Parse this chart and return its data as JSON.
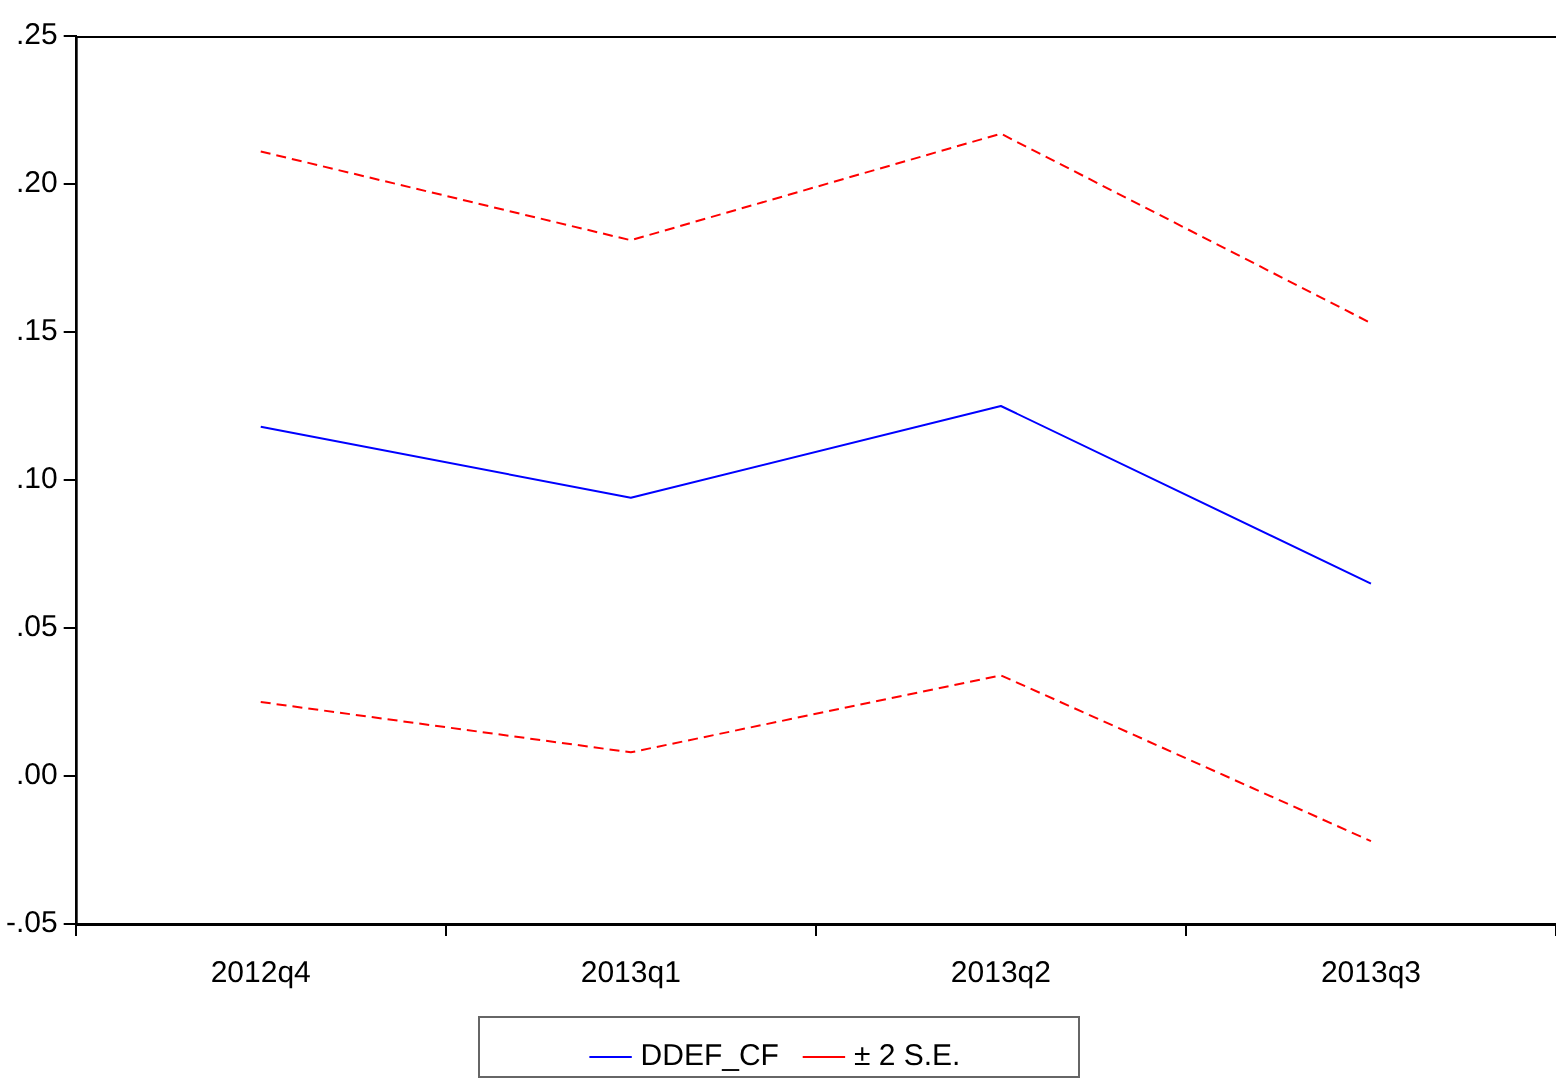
{
  "chart_data": {
    "type": "line",
    "categories": [
      "2012q4",
      "2013q1",
      "2013q2",
      "2013q3"
    ],
    "series": [
      {
        "name": "DDEF_CF",
        "color": "#0000ff",
        "values": [
          0.118,
          0.094,
          0.125,
          0.065
        ],
        "line_style": "solid"
      },
      {
        "name": "± 2 S.E.",
        "color": "#ff0000",
        "values": [
          0.211,
          0.181,
          0.217,
          0.153
        ],
        "line_style": "dashed"
      },
      {
        "color": "#ff0000",
        "values": [
          0.025,
          0.008,
          0.034,
          -0.022
        ],
        "line_style": "dashed"
      }
    ],
    "ylim": [
      -0.05,
      0.25
    ],
    "yticks": [
      {
        "value": -0.05,
        "label": "-.05"
      },
      {
        "value": 0,
        "label": ".00"
      },
      {
        "value": 0.05,
        "label": ".05"
      },
      {
        "value": 0.1,
        "label": ".10"
      },
      {
        "value": 0.15,
        "label": ".15"
      },
      {
        "value": 0.2,
        "label": ".20"
      },
      {
        "value": 0.25,
        "label": ".25"
      }
    ],
    "grid": false,
    "legend": "bottom",
    "marker": "none"
  }
}
